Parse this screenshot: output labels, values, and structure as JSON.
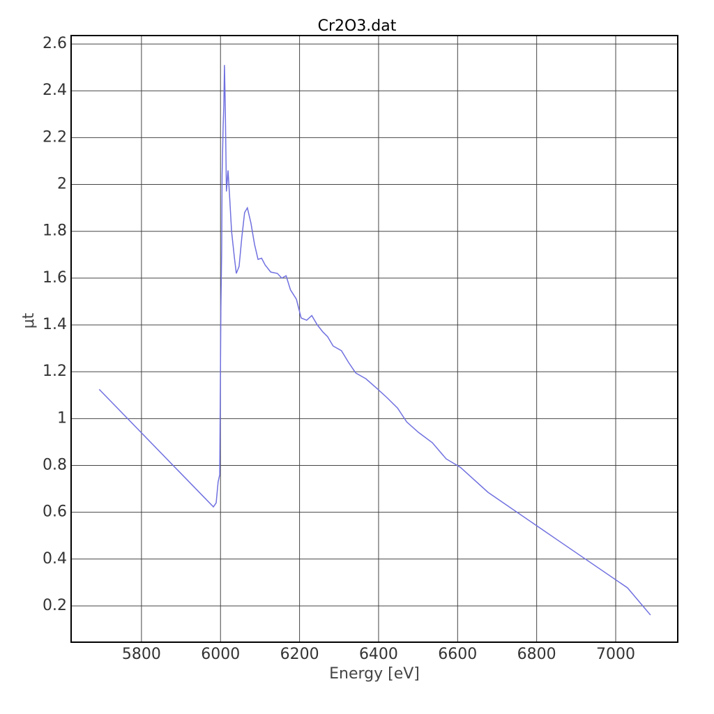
{
  "chart_data": {
    "type": "line",
    "title": "Cr2O3.dat",
    "x_label": "Energy [eV]",
    "y_label": "μt",
    "xlim": [
      5622,
      7157
    ],
    "ylim": [
      0.045,
      2.636
    ],
    "xticks": [
      5800,
      6000,
      6200,
      6400,
      6600,
      6800,
      7000
    ],
    "yticks": [
      0.2,
      0.4,
      0.6,
      0.8,
      1,
      1.2,
      1.4,
      1.6,
      1.8,
      2,
      2.2,
      2.4,
      2.6
    ],
    "grid": true,
    "series": [
      {
        "color": "#7070e0",
        "x": [
          5693,
          5982,
          5989,
          5994,
          5998,
          6000,
          6001,
          6003,
          6004,
          6006.7,
          6008.5,
          6010,
          6012,
          6015,
          6019,
          6023,
          6028,
          6035,
          6040,
          6047,
          6054,
          6061,
          6068,
          6077,
          6086,
          6095,
          6104,
          6113,
          6127,
          6144,
          6155,
          6166,
          6177,
          6192,
          6204,
          6218,
          6231,
          6245,
          6259,
          6271,
          6285,
          6306,
          6324,
          6342,
          6368,
          6395,
          6421,
          6448,
          6471,
          6501,
          6536,
          6571,
          6607,
          6677,
          6854,
          7030,
          7088
        ],
        "values": [
          1.125,
          0.623,
          0.64,
          0.73,
          0.76,
          1.23,
          1.48,
          1.72,
          2.04,
          2.25,
          2.34,
          2.51,
          2.34,
          1.97,
          2.06,
          1.95,
          1.8,
          1.69,
          1.62,
          1.65,
          1.775,
          1.88,
          1.9,
          1.835,
          1.745,
          1.68,
          1.685,
          1.656,
          1.626,
          1.62,
          1.6,
          1.61,
          1.55,
          1.51,
          1.43,
          1.42,
          1.44,
          1.4,
          1.37,
          1.35,
          1.31,
          1.29,
          1.24,
          1.195,
          1.17,
          1.13,
          1.09,
          1.045,
          0.986,
          0.941,
          0.897,
          0.828,
          0.792,
          0.685,
          0.48,
          0.277,
          0.161
        ]
      }
    ]
  }
}
